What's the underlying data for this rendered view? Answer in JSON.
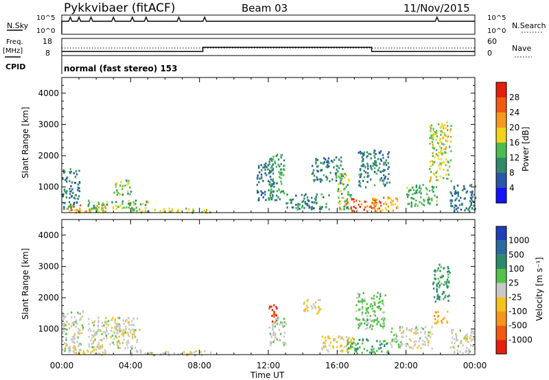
{
  "header": {
    "site": "Pykkvibaer (fitACF)",
    "beam": "Beam 03",
    "date": "11/Nov/2015"
  },
  "noise_panel": {
    "left_label": "N.Sky",
    "left_top": "10^5",
    "left_bottom": "10^0",
    "right_label": "N.Search",
    "right_top": "10^5",
    "right_bottom": "10^0"
  },
  "freq_panel": {
    "left_label_1": "Freq.",
    "left_label_2": "[MHz]",
    "left_top": "18",
    "left_bottom": "8",
    "right_label": "Nave",
    "right_top": "60",
    "right_bottom": "0"
  },
  "cpid_panel": {
    "label": "CPID",
    "mode": "normal (fast stereo) 153"
  },
  "time_axis": {
    "title": "Time UT",
    "ticks": [
      "00:00",
      "04:00",
      "08:00",
      "12:00",
      "16:00",
      "20:00",
      "00:00"
    ],
    "range_hours": [
      0,
      24
    ]
  },
  "power_panel": {
    "ylabel": "Slant Range [km]",
    "yticks": [
      "1000",
      "2000",
      "3000",
      "4000"
    ],
    "colorbar_title": "Power [dB]",
    "colorbar_ticks": [
      "4",
      "8",
      "12",
      "16",
      "20",
      "24",
      "28"
    ],
    "colorbar_colors": [
      "#1212ff",
      "#2b55a8",
      "#2f8a6c",
      "#4bbd4f",
      "#f2d21a",
      "#f59a1c",
      "#f25a12",
      "#e81e0c"
    ]
  },
  "velocity_panel": {
    "ylabel": "Slant Range [km]",
    "yticks": [
      "1000",
      "2000",
      "3000",
      "4000"
    ],
    "colorbar_title": "Velocity [m s⁻¹]",
    "colorbar_ticks": [
      "1000",
      "500",
      "100",
      "25",
      "-25",
      "-100",
      "-500",
      "-1000"
    ],
    "colorbar_colors": [
      "#1d3fb8",
      "#2b6aa0",
      "#2c8a6a",
      "#55c24a",
      "#c8c8c8",
      "#f5c21a",
      "#f5961a",
      "#f25a12",
      "#e81e0c"
    ]
  },
  "chart_data": [
    {
      "type": "heatmap",
      "title": "Power",
      "xlabel": "Time UT",
      "ylabel": "Slant Range [km]",
      "xlim": [
        0,
        24
      ],
      "ylim": [
        180,
        4500
      ],
      "colorbar": {
        "label": "Power [dB]",
        "range": [
          0,
          32
        ]
      },
      "patches": [
        {
          "t0": 0.0,
          "t1": 1.0,
          "r0": 300,
          "r1": 1650,
          "value": 9
        },
        {
          "t0": 0.2,
          "t1": 2.6,
          "r0": 200,
          "r1": 450,
          "value": 22
        },
        {
          "t0": 1.5,
          "t1": 5.0,
          "r0": 250,
          "r1": 600,
          "value": 14
        },
        {
          "t0": 3.0,
          "t1": 4.0,
          "r0": 750,
          "r1": 1250,
          "value": 15
        },
        {
          "t0": 4.0,
          "t1": 8.7,
          "r0": 200,
          "r1": 350,
          "value": 17
        },
        {
          "t0": 11.3,
          "t1": 12.3,
          "r0": 600,
          "r1": 1800,
          "value": 8
        },
        {
          "t0": 12.0,
          "t1": 12.9,
          "r0": 600,
          "r1": 2100,
          "value": 12
        },
        {
          "t0": 13.0,
          "t1": 15.5,
          "r0": 300,
          "r1": 800,
          "value": 10
        },
        {
          "t0": 14.5,
          "t1": 16.3,
          "r0": 1200,
          "r1": 2000,
          "value": 9
        },
        {
          "t0": 16.0,
          "t1": 16.8,
          "r0": 300,
          "r1": 1500,
          "value": 14
        },
        {
          "t0": 16.5,
          "t1": 18.5,
          "r0": 250,
          "r1": 650,
          "value": 27
        },
        {
          "t0": 18.0,
          "t1": 19.5,
          "r0": 250,
          "r1": 700,
          "value": 21
        },
        {
          "t0": 17.2,
          "t1": 19.0,
          "r0": 1000,
          "r1": 2200,
          "value": 9
        },
        {
          "t0": 20.0,
          "t1": 21.8,
          "r0": 400,
          "r1": 1100,
          "value": 13
        },
        {
          "t0": 21.3,
          "t1": 22.6,
          "r0": 1200,
          "r1": 3100,
          "value": 17
        },
        {
          "t0": 22.5,
          "t1": 24.0,
          "r0": 250,
          "r1": 1100,
          "value": 8
        }
      ]
    },
    {
      "type": "heatmap",
      "title": "Velocity",
      "xlabel": "Time UT",
      "ylabel": "Slant Range [km]",
      "xlim": [
        0,
        24
      ],
      "ylim": [
        180,
        4500
      ],
      "colorbar": {
        "label": "Velocity [m s⁻¹]",
        "range": [
          -1000,
          1000
        ]
      },
      "patches": [
        {
          "t0": 0.0,
          "t1": 1.2,
          "r0": 300,
          "r1": 1650,
          "value": 0
        },
        {
          "t0": 0.2,
          "t1": 2.5,
          "r0": 200,
          "r1": 450,
          "value": -120
        },
        {
          "t0": 1.5,
          "t1": 4.5,
          "r0": 400,
          "r1": 1400,
          "value": 0
        },
        {
          "t0": 3.0,
          "t1": 4.0,
          "r0": 800,
          "r1": 1200,
          "value": -60
        },
        {
          "t0": 4.0,
          "t1": 8.7,
          "r0": 180,
          "r1": 350,
          "value": -20
        },
        {
          "t0": 12.0,
          "t1": 12.5,
          "r0": 1200,
          "r1": 1800,
          "value": -800
        },
        {
          "t0": 12.0,
          "t1": 13.0,
          "r0": 500,
          "r1": 1400,
          "value": 60
        },
        {
          "t0": 14.0,
          "t1": 15.0,
          "r0": 1500,
          "r1": 2000,
          "value": -150
        },
        {
          "t0": 15.0,
          "t1": 17.0,
          "r0": 300,
          "r1": 800,
          "value": -150
        },
        {
          "t0": 16.5,
          "t1": 19.0,
          "r0": 250,
          "r1": 700,
          "value": 300
        },
        {
          "t0": 17.0,
          "t1": 18.8,
          "r0": 1000,
          "r1": 2200,
          "value": 200
        },
        {
          "t0": 19.0,
          "t1": 21.5,
          "r0": 400,
          "r1": 1100,
          "value": 0
        },
        {
          "t0": 21.5,
          "t1": 22.5,
          "r0": 1900,
          "r1": 3100,
          "value": 400
        },
        {
          "t0": 21.6,
          "t1": 22.4,
          "r0": 1200,
          "r1": 1600,
          "value": -300
        },
        {
          "t0": 22.5,
          "t1": 24.0,
          "r0": 250,
          "r1": 1000,
          "value": 0
        }
      ]
    }
  ]
}
